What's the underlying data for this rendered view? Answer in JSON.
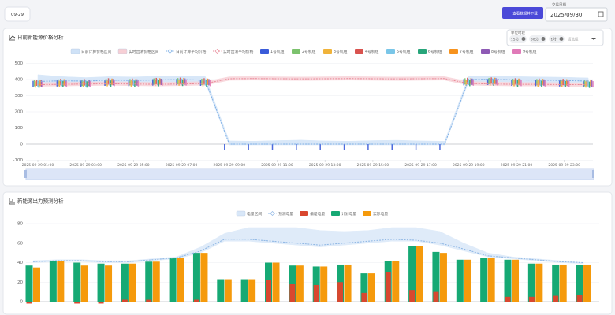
{
  "header": {
    "tab": "09-29",
    "button": "查看数据并下载",
    "date_label": "交易日期",
    "date": "2025/09/30"
  },
  "controls": {
    "label": "单位时段",
    "chips": [
      "15分",
      "30分",
      "1时"
    ],
    "placeholder": "请选择"
  },
  "chart_data": [
    {
      "type": "line",
      "title": "日前新能源价格分析",
      "categories": [
        "2025-09-29 01:00",
        null,
        "2025-09-29 03:00",
        null,
        "2025-09-29 05:00",
        null,
        "2025-09-29 07:00",
        null,
        "2025-09-29 09:00",
        null,
        "2025-09-29 11:00",
        null,
        "2025-09-29 13:00",
        null,
        "2025-09-29 15:00",
        null,
        "2025-09-29 17:00",
        null,
        "2025-09-29 19:00",
        null,
        "2025-09-29 21:00",
        null,
        "2025-09-29 23:00",
        null
      ],
      "ylim": [
        -100,
        500
      ],
      "yticks": [
        -100,
        0,
        100,
        200,
        300,
        400,
        500
      ],
      "grid": true,
      "bands": [
        {
          "name": "日前计算价格区间",
          "color": "#cfe2f7",
          "lower": [
            373,
            377,
            375,
            381,
            379,
            383,
            385,
            381,
            -5,
            -5,
            -5,
            -5,
            -5,
            -5,
            -5,
            -5,
            -5,
            -5,
            385,
            387,
            383,
            381,
            379,
            375
          ],
          "upper": [
            430,
            418,
            412,
            418,
            416,
            420,
            422,
            418,
            20,
            18,
            22,
            25,
            20,
            18,
            22,
            24,
            20,
            18,
            420,
            422,
            418,
            416,
            414,
            410
          ]
        },
        {
          "name": "实时出清价格区间",
          "color": "#f7cfd5",
          "lower": [
            358,
            360,
            362,
            364,
            362,
            360,
            362,
            365,
            395,
            396,
            395,
            394,
            395,
            396,
            395,
            394,
            395,
            396,
            365,
            362,
            360,
            360,
            358,
            358
          ],
          "upper": [
            380,
            382,
            384,
            386,
            384,
            382,
            384,
            387,
            417,
            418,
            417,
            416,
            417,
            418,
            417,
            416,
            417,
            418,
            387,
            384,
            382,
            382,
            380,
            380
          ]
        }
      ],
      "lines": [
        {
          "name": "日前计算平均价格",
          "color": "#7fb0e6",
          "values": [
            388,
            392,
            390,
            396,
            394,
            398,
            400,
            396,
            0,
            0,
            0,
            0,
            0,
            0,
            0,
            0,
            0,
            0,
            400,
            402,
            398,
            396,
            394,
            390
          ]
        },
        {
          "name": "实时出清平均价格",
          "color": "#e98a99",
          "values": [
            368,
            370,
            372,
            374,
            372,
            370,
            372,
            375,
            405,
            406,
            405,
            404,
            405,
            406,
            405,
            404,
            405,
            406,
            375,
            372,
            370,
            370,
            368,
            368
          ]
        }
      ],
      "units": [
        {
          "name": "1号机组",
          "color": "#3a5bd9",
          "values": [
            392,
            396,
            394,
            400,
            398,
            402,
            404,
            400,
            0,
            0,
            0,
            0,
            0,
            0,
            0,
            0,
            0,
            0,
            403,
            405,
            400,
            398,
            396,
            392
          ]
        },
        {
          "name": "2号机组",
          "color": "#7cc26d",
          "values": [
            397,
            401,
            399,
            405,
            403,
            407,
            409,
            405,
            null,
            null,
            null,
            null,
            null,
            null,
            null,
            null,
            null,
            null,
            408,
            410,
            405,
            403,
            401,
            397
          ]
        },
        {
          "name": "3号机组",
          "color": "#f0b33a",
          "values": [
            389,
            393,
            391,
            397,
            395,
            399,
            401,
            397,
            null,
            null,
            null,
            null,
            null,
            null,
            null,
            null,
            null,
            null,
            400,
            402,
            397,
            395,
            393,
            389
          ]
        },
        {
          "name": "4号机组",
          "color": "#d9534f",
          "values": [
            400,
            404,
            402,
            408,
            406,
            410,
            412,
            408,
            null,
            null,
            null,
            null,
            null,
            null,
            null,
            null,
            null,
            null,
            411,
            413,
            408,
            406,
            404,
            400
          ]
        },
        {
          "name": "5号机组",
          "color": "#7ac6e8",
          "values": [
            394,
            398,
            396,
            402,
            400,
            404,
            406,
            402,
            null,
            null,
            null,
            null,
            null,
            null,
            null,
            null,
            null,
            null,
            405,
            407,
            402,
            400,
            398,
            394
          ]
        },
        {
          "name": "6号机组",
          "color": "#27a57a",
          "values": [
            387,
            391,
            389,
            395,
            393,
            397,
            399,
            395,
            null,
            null,
            null,
            null,
            null,
            null,
            null,
            null,
            null,
            null,
            398,
            400,
            395,
            393,
            391,
            387
          ]
        },
        {
          "name": "7号机组",
          "color": "#f7931e",
          "values": [
            398,
            402,
            400,
            406,
            404,
            408,
            410,
            406,
            null,
            null,
            null,
            null,
            null,
            null,
            null,
            null,
            null,
            null,
            409,
            411,
            406,
            404,
            402,
            398
          ]
        },
        {
          "name": "8号机组",
          "color": "#8e5ab5",
          "values": [
            395,
            399,
            397,
            403,
            401,
            405,
            407,
            403,
            null,
            null,
            null,
            null,
            null,
            null,
            null,
            null,
            null,
            null,
            406,
            408,
            403,
            401,
            399,
            395
          ]
        },
        {
          "name": "9号机组",
          "color": "#e07ab8",
          "values": [
            390,
            394,
            392,
            398,
            396,
            400,
            402,
            398,
            null,
            null,
            null,
            null,
            null,
            null,
            null,
            null,
            null,
            null,
            401,
            403,
            398,
            396,
            394,
            390
          ]
        }
      ]
    },
    {
      "type": "bar",
      "title": "新能源出力预测分析",
      "categories": [
        null,
        null,
        null,
        null,
        null,
        null,
        null,
        null,
        null,
        null,
        null,
        null,
        null,
        null,
        null,
        null,
        null,
        null,
        null,
        null,
        null,
        null,
        null,
        null
      ],
      "ylim": [
        0,
        80
      ],
      "yticks": [
        0,
        20,
        40,
        60,
        80
      ],
      "grid": true,
      "bands": [
        {
          "name": "电量区间",
          "color": "#d8e7f8",
          "lower": [
            40,
            41,
            41,
            40,
            40,
            42,
            44,
            50,
            62,
            62,
            60,
            58,
            56,
            58,
            60,
            62,
            62,
            58,
            52,
            46,
            44,
            42,
            40,
            39
          ],
          "upper": [
            42,
            43,
            43,
            42,
            42,
            44,
            46,
            56,
            70,
            76,
            76,
            76,
            73,
            72,
            73,
            76,
            76,
            72,
            60,
            50,
            46,
            44,
            42,
            40
          ]
        }
      ],
      "lines": [
        {
          "name": "预测电量",
          "color": "#8db6e4",
          "values": [
            41,
            42,
            42,
            41,
            41,
            43,
            45,
            52,
            64,
            64,
            62,
            60,
            58,
            60,
            62,
            64,
            63,
            60,
            54,
            47,
            45,
            43,
            41,
            40
          ]
        }
      ],
      "bars": [
        {
          "name": "偏差电量",
          "color": "#d9472f",
          "values": [
            -2,
            0,
            -2,
            -2,
            2,
            2,
            0,
            2,
            0,
            0,
            22,
            18,
            17,
            20,
            9,
            30,
            12,
            10,
            0,
            0,
            5,
            5,
            6,
            7
          ]
        },
        {
          "name": "计划电量",
          "color": "#16a974",
          "values": [
            37,
            42,
            40,
            39,
            39,
            41,
            45,
            50,
            23,
            23,
            40,
            37,
            36,
            38,
            29,
            42,
            57,
            51,
            43,
            45,
            43,
            39,
            38,
            38
          ]
        },
        {
          "name": "实际电量",
          "color": "#f59a0c",
          "values": [
            35,
            42,
            37,
            37,
            39,
            41,
            45,
            50,
            23,
            23,
            40,
            37,
            36,
            38,
            29,
            42,
            57,
            50,
            43,
            45,
            43,
            39,
            38,
            38
          ]
        }
      ]
    }
  ]
}
